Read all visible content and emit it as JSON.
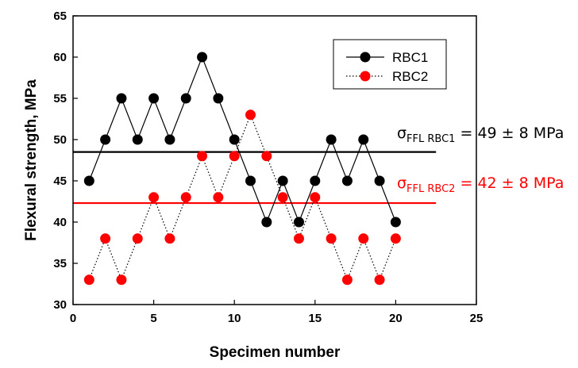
{
  "chart_data": {
    "type": "line",
    "xlabel": "Specimen number",
    "ylabel": "Flexural strength, MPa",
    "xlim": [
      0,
      25
    ],
    "ylim": [
      30,
      65
    ],
    "xticks": [
      0,
      5,
      10,
      15,
      20,
      25
    ],
    "yticks": [
      30,
      35,
      40,
      45,
      50,
      55,
      60,
      65
    ],
    "grid": false,
    "legend_position": "top-right",
    "series": [
      {
        "name": "RBC1",
        "color": "#000000",
        "line_style": "solid",
        "x": [
          1,
          2,
          3,
          4,
          5,
          6,
          7,
          8,
          9,
          10,
          11,
          12,
          13,
          14,
          15,
          16,
          17,
          18,
          19,
          20
        ],
        "y": [
          45,
          50,
          55,
          50,
          55,
          50,
          55,
          60,
          55,
          50,
          45,
          40,
          45,
          40,
          45,
          50,
          45,
          50,
          45,
          40
        ]
      },
      {
        "name": "RBC2",
        "color": "#ff0000",
        "line_style": "dotted",
        "x": [
          1,
          2,
          3,
          4,
          5,
          6,
          7,
          8,
          9,
          10,
          11,
          12,
          13,
          14,
          15,
          16,
          17,
          18,
          19,
          20
        ],
        "y": [
          33,
          38,
          33,
          38,
          43,
          38,
          43,
          48,
          43,
          48,
          53,
          48,
          43,
          38,
          43,
          38,
          33,
          38,
          33,
          38
        ]
      }
    ],
    "reference_lines": [
      {
        "series": "RBC1",
        "y": 48.5,
        "color": "#000000",
        "x_range": [
          0,
          22.5
        ]
      },
      {
        "series": "RBC2",
        "y": 42.3,
        "color": "#ff0000",
        "x_range": [
          0,
          22.5
        ]
      }
    ],
    "annotations": [
      {
        "series": "RBC1",
        "sigma": "σ",
        "subscript": "FFL RBC1",
        "text": " = 49 ± 8 MPa",
        "color": "#000000"
      },
      {
        "series": "RBC2",
        "sigma": "σ",
        "subscript": "FFL RBC2",
        "text": " = 42 ± 8 MPa",
        "color": "#ff0000"
      }
    ]
  }
}
